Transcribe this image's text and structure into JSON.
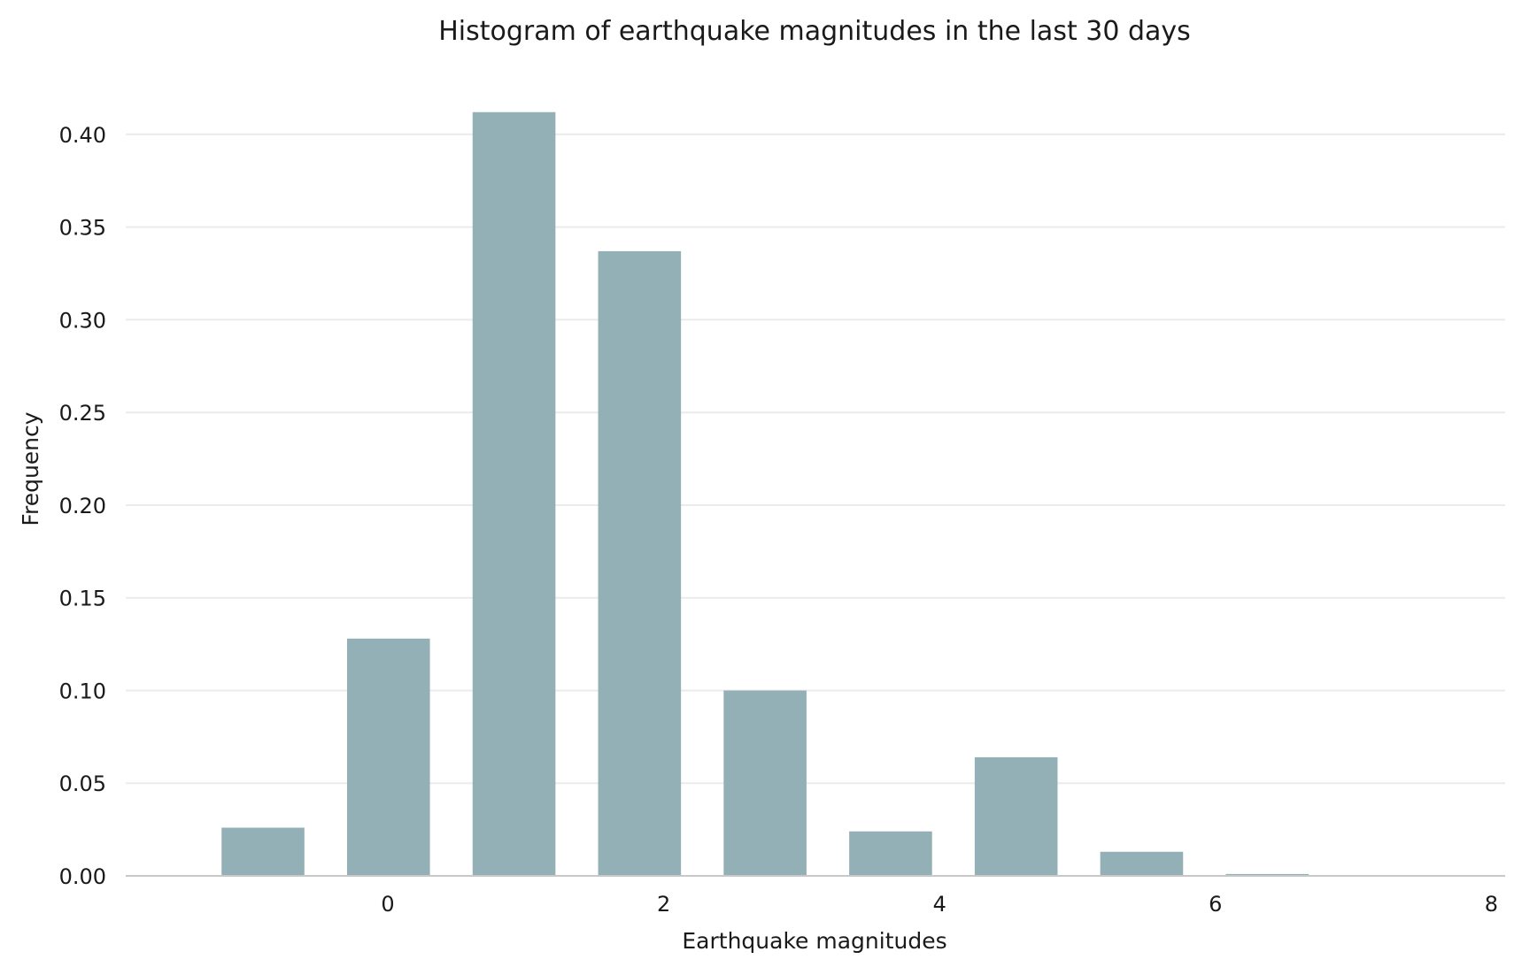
{
  "chart_data": {
    "type": "bar",
    "title": "Histogram of earthquake magnitudes in the last 30 days",
    "xlabel": "Earthquake magnitudes",
    "ylabel": "Frequency",
    "bin_edges": [
      -1.36,
      -0.45,
      0.46,
      1.37,
      2.28,
      3.19,
      4.1,
      5.01,
      5.92,
      6.83,
      7.74
    ],
    "values": [
      0.026,
      0.128,
      0.412,
      0.337,
      0.1,
      0.024,
      0.064,
      0.013,
      0.001,
      0.0
    ],
    "bar_width_fraction": 0.66,
    "xlim": [
      -1.9,
      8.1
    ],
    "ylim": [
      0,
      0.42
    ],
    "xticks": [
      0,
      2,
      4,
      6,
      8
    ],
    "xtick_labels": [
      "0",
      "2",
      "4",
      "6",
      "8"
    ],
    "yticks": [
      0,
      0.05,
      0.1,
      0.15,
      0.2,
      0.25,
      0.3,
      0.35,
      0.4
    ],
    "ytick_labels": [
      "0.00",
      "0.05",
      "0.10",
      "0.15",
      "0.20",
      "0.25",
      "0.30",
      "0.35",
      "0.40"
    ],
    "bar_color": "#93b0b6",
    "grid": "horizontal"
  }
}
